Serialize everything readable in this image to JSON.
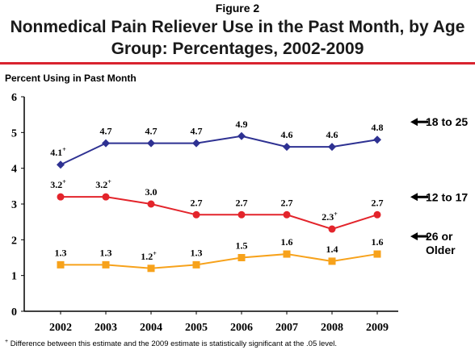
{
  "figure_label": "Figure 2",
  "footnote_marker": "+",
  "footnote_text": "Difference between this estimate and the 2009 estimate is statistically significant at the .05 level.",
  "chart_data": {
    "type": "line",
    "title": "Nonmedical Pain Reliever Use in the Past Month, by Age Group: Percentages, 2002-2009",
    "ylabel": "Percent Using in Past Month",
    "xlabel": "",
    "x": [
      "2002",
      "2003",
      "2004",
      "2005",
      "2006",
      "2007",
      "2008",
      "2009"
    ],
    "ylim": [
      0,
      6
    ],
    "yticks": [
      0,
      1,
      2,
      3,
      4,
      5,
      6
    ],
    "grid": false,
    "legend_placement": "right",
    "series": [
      {
        "name": "18 to 25",
        "color": "#2e3192",
        "marker": "diamond",
        "values": [
          4.1,
          4.7,
          4.7,
          4.7,
          4.9,
          4.6,
          4.6,
          4.8
        ],
        "labels": [
          "4.1+",
          "4.7",
          "4.7",
          "4.7",
          "4.9",
          "4.6",
          "4.6",
          "4.8"
        ]
      },
      {
        "name": "12 to 17",
        "color": "#e3242b",
        "marker": "circle",
        "values": [
          3.2,
          3.2,
          3.0,
          2.7,
          2.7,
          2.7,
          2.3,
          2.7
        ],
        "labels": [
          "3.2+",
          "3.2+",
          "3.0",
          "2.7",
          "2.7",
          "2.7",
          "2.3+",
          "2.7"
        ]
      },
      {
        "name": "26 or Older",
        "color": "#f7a21b",
        "marker": "square",
        "values": [
          1.3,
          1.3,
          1.2,
          1.3,
          1.5,
          1.6,
          1.4,
          1.6
        ],
        "labels": [
          "1.3",
          "1.3",
          "1.2+",
          "1.3",
          "1.5",
          "1.6",
          "1.4",
          "1.6"
        ]
      }
    ]
  }
}
